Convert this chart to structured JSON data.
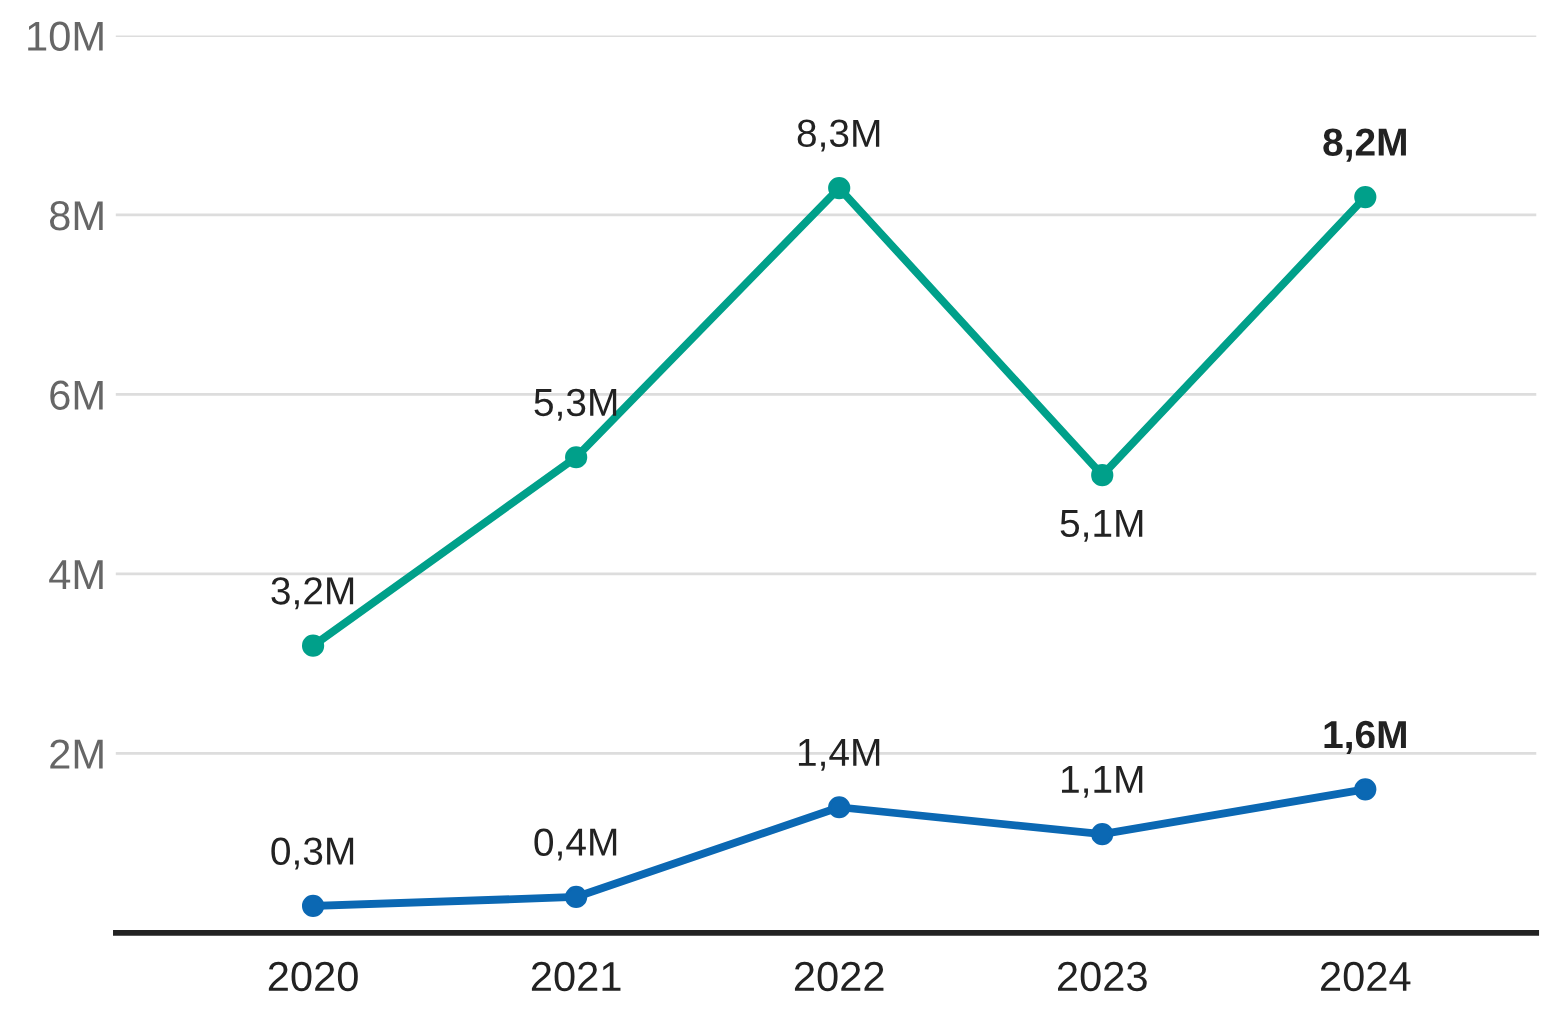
{
  "chart_data": {
    "type": "line",
    "categories": [
      "2020",
      "2021",
      "2022",
      "2023",
      "2024"
    ],
    "series": [
      {
        "color": "#00a08a",
        "values": [
          3.2,
          5.3,
          8.3,
          5.1,
          8.2
        ],
        "value_labels": [
          "3,2M",
          "5,3M",
          "8,3M",
          "5,1M",
          "8,2M"
        ]
      },
      {
        "color": "#0b68b3",
        "values": [
          0.3,
          0.4,
          1.4,
          1.1,
          1.6
        ],
        "value_labels": [
          "0,3M",
          "0,4M",
          "1,4M",
          "1,1M",
          "1,6M"
        ]
      }
    ],
    "ylim": [
      0,
      10
    ],
    "yticks": [
      {
        "value": 0,
        "label": null
      },
      {
        "value": 2,
        "label": "2M"
      },
      {
        "value": 4,
        "label": "4M"
      },
      {
        "value": 6,
        "label": "6M"
      },
      {
        "value": 8,
        "label": "8M"
      },
      {
        "value": 10,
        "label": "10M"
      }
    ],
    "grid": "y",
    "marker": "circle",
    "line_style": "solid",
    "legend": false
  }
}
